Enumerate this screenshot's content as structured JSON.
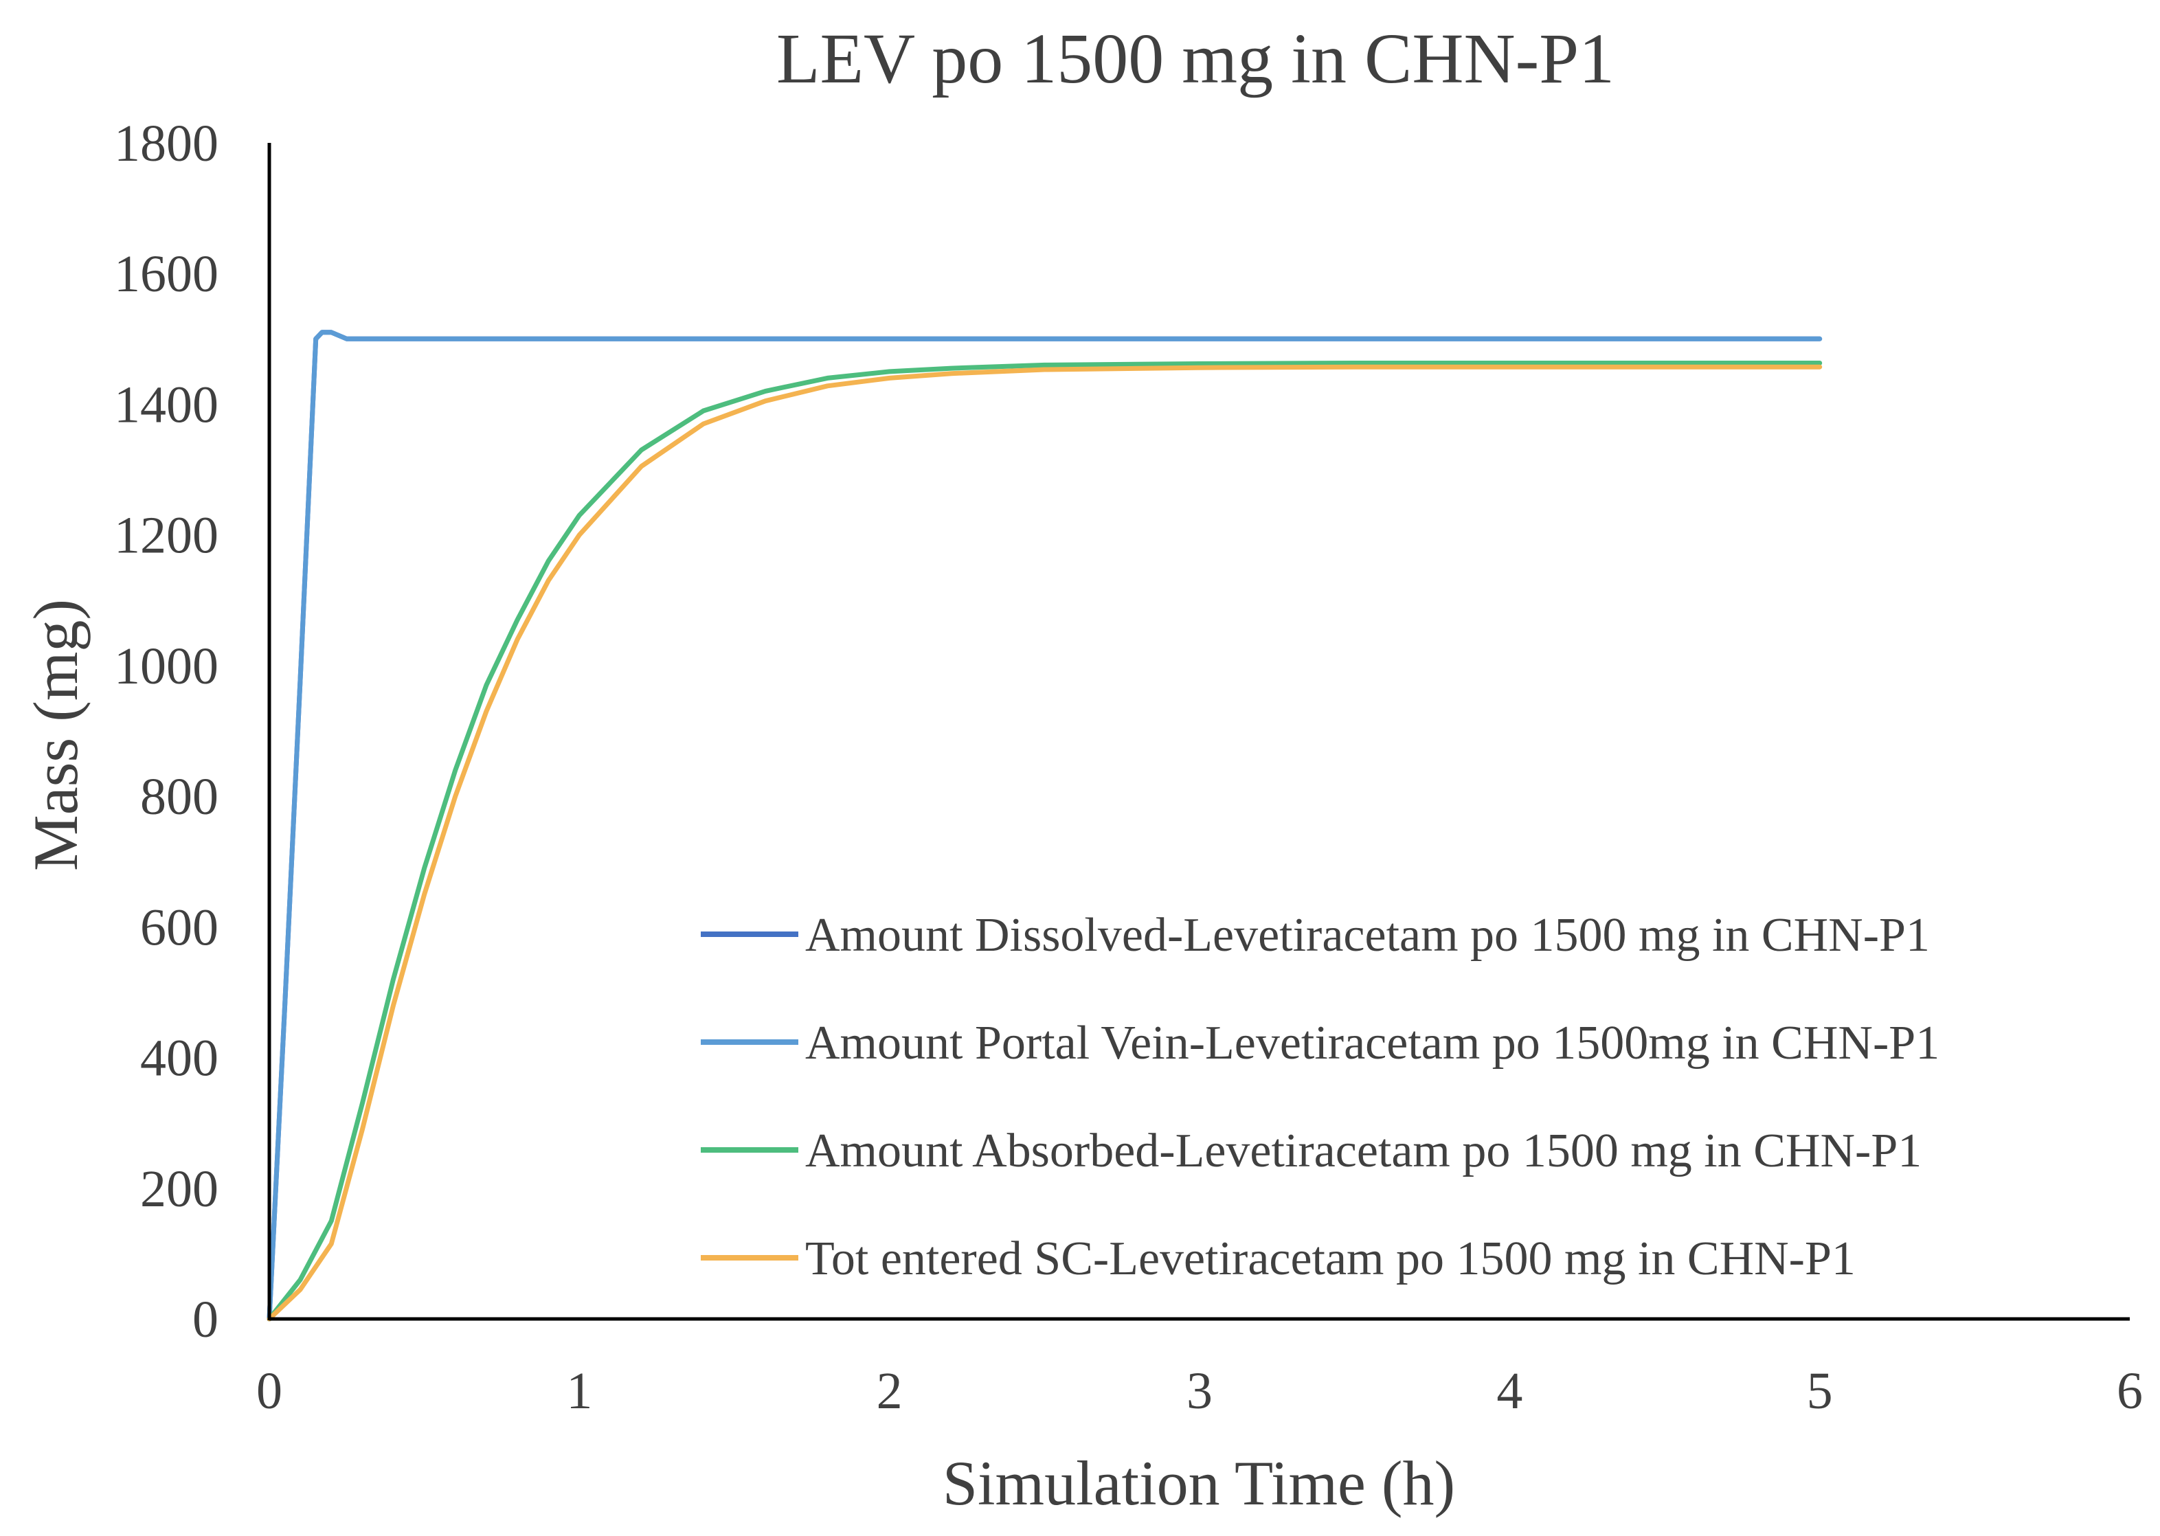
{
  "chart_data": {
    "type": "line",
    "title": "LEV po 1500 mg in CHN-P1",
    "xlabel": "Simulation Time (h)",
    "ylabel": "Mass (mg)",
    "xlim": [
      0,
      6
    ],
    "ylim": [
      0,
      1800
    ],
    "xticks": [
      0,
      1,
      2,
      3,
      4,
      5,
      6
    ],
    "yticks": [
      0,
      200,
      400,
      600,
      800,
      1000,
      1200,
      1400,
      1600,
      1800
    ],
    "grid": false,
    "legend_position": "bottom-right",
    "series": [
      {
        "name": "Amount Dissolved-Levetiracetam po 1500 mg in CHN-P1",
        "color": "#4472C4",
        "x": [
          0,
          0.05,
          0.1,
          0.15,
          0.17,
          0.2,
          0.25,
          0.3,
          1,
          2,
          3,
          4,
          5
        ],
        "y": [
          0,
          480,
          980,
          1500,
          1510,
          1510,
          1500,
          1500,
          1500,
          1500,
          1500,
          1500,
          1500
        ]
      },
      {
        "name": "Amount Portal Vein-Levetiracetam po 1500mg in CHN-P1",
        "color": "#5B9BD5",
        "x": [
          0,
          0.05,
          0.1,
          0.15,
          0.17,
          0.2,
          0.25,
          0.3,
          1,
          2,
          3,
          4,
          5
        ],
        "y": [
          0,
          480,
          980,
          1500,
          1510,
          1510,
          1500,
          1500,
          1500,
          1500,
          1500,
          1500,
          1500
        ]
      },
      {
        "name": "Amount Absorbed-Levetiracetam po 1500 mg in CHN-P1",
        "color": "#4DBD7E",
        "x": [
          0,
          0.1,
          0.2,
          0.3,
          0.4,
          0.5,
          0.6,
          0.7,
          0.8,
          0.9,
          1.0,
          1.2,
          1.4,
          1.6,
          1.8,
          2.0,
          2.2,
          2.5,
          3.0,
          3.5,
          4.0,
          5.0
        ],
        "y": [
          0,
          60,
          150,
          330,
          520,
          690,
          840,
          970,
          1070,
          1160,
          1230,
          1330,
          1390,
          1420,
          1440,
          1450,
          1455,
          1460,
          1462,
          1463,
          1463,
          1463
        ]
      },
      {
        "name": "Tot entered SC-Levetiracetam po 1500 mg in CHN-P1",
        "color": "#F4B350",
        "x": [
          0,
          0.1,
          0.2,
          0.3,
          0.4,
          0.5,
          0.6,
          0.7,
          0.8,
          0.9,
          1.0,
          1.2,
          1.4,
          1.6,
          1.8,
          2.0,
          2.2,
          2.5,
          3.0,
          3.5,
          4.0,
          5.0
        ],
        "y": [
          0,
          45,
          115,
          290,
          480,
          650,
          800,
          930,
          1040,
          1130,
          1200,
          1305,
          1370,
          1405,
          1428,
          1440,
          1447,
          1453,
          1456,
          1457,
          1457,
          1457
        ]
      }
    ]
  }
}
